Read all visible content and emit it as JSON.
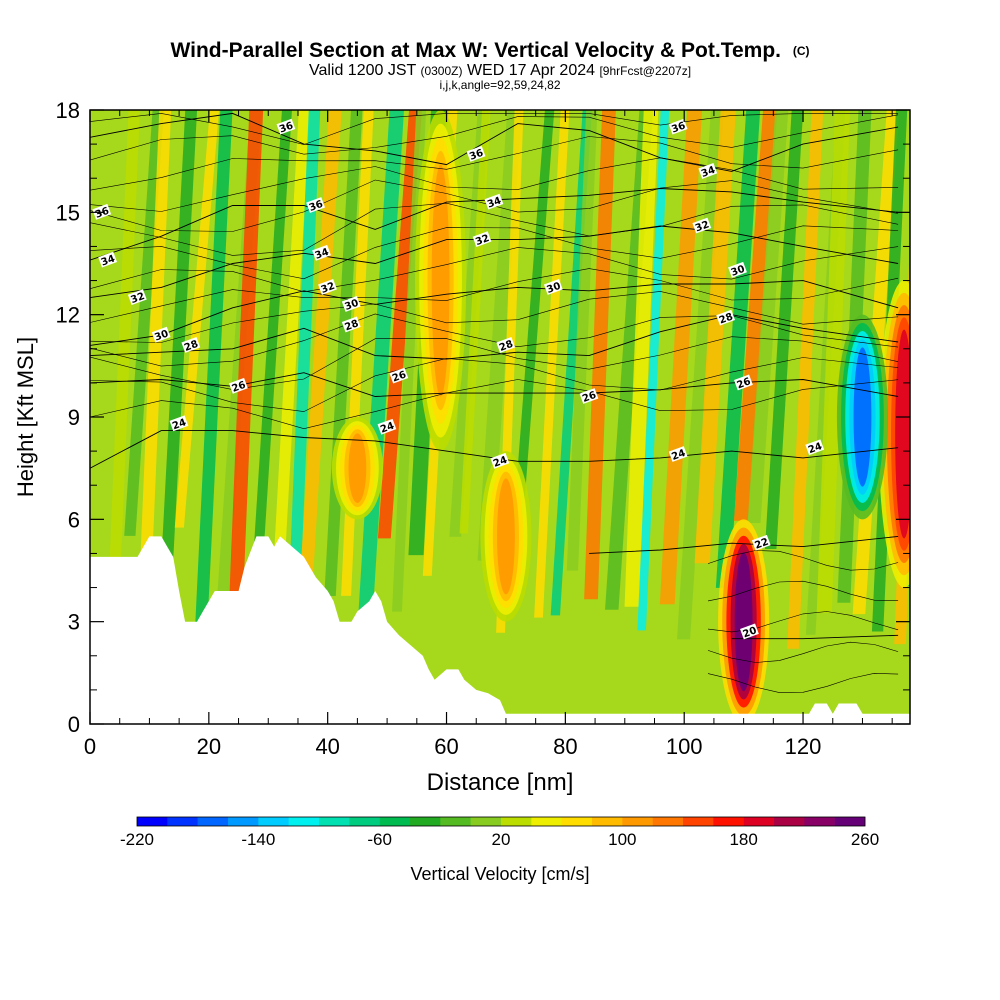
{
  "chart_data": {
    "type": "heatmap",
    "title": "Wind-Parallel Section at Max W: Vertical Velocity & Pot.Temp.",
    "title_unit": "(C)",
    "subtitle_main": "Valid 1200 JST",
    "subtitle_utc": "(0300Z)",
    "subtitle_date": "WED 17 Apr 2024",
    "subtitle_fcst": "[9hrFcst@2207z]",
    "indices": "i,j,k,angle=92,59,24,82",
    "xlabel": "Distance [nm]",
    "ylabel": "Height [Kft MSL]",
    "xlim": [
      0,
      138
    ],
    "ylim": [
      0,
      18
    ],
    "x_ticks": [
      "0",
      "20",
      "40",
      "60",
      "80",
      "100",
      "120"
    ],
    "y_ticks": [
      "0",
      "3",
      "6",
      "9",
      "12",
      "15",
      "18"
    ],
    "colorbar": {
      "label": "Vertical Velocity [cm/s]",
      "range": [
        -220,
        260
      ],
      "ticks": [
        "-220",
        "-140",
        "-60",
        "20",
        "100",
        "180",
        "260"
      ],
      "colors": [
        "#0000ff",
        "#0033ff",
        "#0066ff",
        "#0099ff",
        "#00ccff",
        "#00f0f0",
        "#00e0b0",
        "#00cc80",
        "#00bb50",
        "#22aa22",
        "#55bb22",
        "#88cc22",
        "#bbdd00",
        "#eeee00",
        "#ffdd00",
        "#ffbb00",
        "#ff9900",
        "#ff7700",
        "#ff4400",
        "#ff1100",
        "#dd0022",
        "#aa0044",
        "#880066",
        "#660077"
      ]
    },
    "terrain_kft": [
      [
        0,
        4.9
      ],
      [
        6,
        4.9
      ],
      [
        8,
        4.9
      ],
      [
        9,
        5.2
      ],
      [
        10,
        5.5
      ],
      [
        12,
        5.5
      ],
      [
        13,
        5.2
      ],
      [
        14,
        4.9
      ],
      [
        15,
        3.9
      ],
      [
        16,
        3.0
      ],
      [
        18,
        3.0
      ],
      [
        19,
        3.3
      ],
      [
        20,
        3.6
      ],
      [
        21,
        3.9
      ],
      [
        25,
        3.9
      ],
      [
        26,
        4.6
      ],
      [
        28,
        5.5
      ],
      [
        30,
        5.5
      ],
      [
        31,
        5.2
      ],
      [
        32,
        5.5
      ],
      [
        34,
        5.2
      ],
      [
        36,
        4.9
      ],
      [
        38,
        4.3
      ],
      [
        40,
        3.9
      ],
      [
        41,
        3.6
      ],
      [
        42,
        3.0
      ],
      [
        44,
        3.0
      ],
      [
        45,
        3.3
      ],
      [
        47,
        3.6
      ],
      [
        48,
        3.9
      ],
      [
        49,
        3.6
      ],
      [
        50,
        3.0
      ],
      [
        52,
        2.6
      ],
      [
        54,
        2.3
      ],
      [
        56,
        2.0
      ],
      [
        57,
        1.6
      ],
      [
        58,
        1.3
      ],
      [
        60,
        1.6
      ],
      [
        62,
        1.6
      ],
      [
        63,
        1.3
      ],
      [
        65,
        1.0
      ],
      [
        67,
        0.9
      ],
      [
        69,
        0.7
      ],
      [
        70,
        0.3
      ],
      [
        72,
        0.3
      ],
      [
        75,
        0.3
      ],
      [
        80,
        0.3
      ],
      [
        90,
        0.3
      ],
      [
        100,
        0.3
      ],
      [
        110,
        0.3
      ],
      [
        119,
        0.3
      ],
      [
        121,
        0.3
      ],
      [
        122,
        0.6
      ],
      [
        124,
        0.6
      ],
      [
        125,
        0.3
      ],
      [
        126,
        0.6
      ],
      [
        129,
        0.6
      ],
      [
        130,
        0.3
      ],
      [
        138,
        0.3
      ]
    ],
    "updrafts": [
      {
        "x": 110,
        "z0": 0,
        "z1": 6,
        "w": 260
      },
      {
        "x": 137,
        "z0": 4,
        "z1": 13,
        "w": 190
      },
      {
        "x": 130,
        "z0": 6,
        "z1": 12,
        "w": -180
      },
      {
        "x": 59,
        "z0": 8,
        "z1": 18,
        "w": 110
      },
      {
        "x": 45,
        "z0": 6,
        "z1": 9,
        "w": 100
      },
      {
        "x": 70,
        "z0": 3,
        "z1": 8,
        "w": 100
      }
    ],
    "contours": [
      {
        "level": "36",
        "y": [
          17.2,
          17.6,
          17.9,
          17.0,
          16.8,
          16.4,
          17.6,
          17.4,
          16.6,
          16.2,
          17.0,
          17.5
        ]
      },
      {
        "level": "34",
        "y": [
          13.6,
          14.3,
          15.2,
          15.2,
          14.5,
          15.3,
          15.4,
          15.5,
          15.7,
          15.6,
          15.3,
          15.0
        ]
      },
      {
        "level": "32",
        "y": [
          12.5,
          12.8,
          13.5,
          13.8,
          13.5,
          14.2,
          14.2,
          14.3,
          14.6,
          14.4,
          14.0,
          13.5
        ]
      },
      {
        "level": "30",
        "y": [
          11.1,
          11.4,
          12.2,
          12.7,
          12.3,
          12.6,
          12.8,
          12.7,
          12.9,
          12.9,
          13.0,
          12.2
        ]
      },
      {
        "level": "28",
        "y": [
          10.8,
          10.9,
          11.0,
          11.6,
          10.8,
          10.7,
          10.9,
          10.8,
          11.5,
          12.0,
          11.6,
          11.2
        ]
      },
      {
        "level": "26",
        "y": [
          10.0,
          10.1,
          9.9,
          10.3,
          9.6,
          9.7,
          9.7,
          9.7,
          9.8,
          10.0,
          10.1,
          9.6
        ]
      },
      {
        "level": "24",
        "y": [
          7.5,
          8.6,
          8.6,
          8.4,
          8.3,
          8.0,
          7.7,
          7.7,
          7.8,
          8.0,
          7.8,
          8.1
        ]
      },
      {
        "level": "22",
        "y": [
          null,
          null,
          null,
          null,
          null,
          null,
          null,
          5.0,
          5.1,
          5.3,
          5.2,
          5.5
        ]
      },
      {
        "level": "20",
        "y": [
          null,
          null,
          null,
          null,
          null,
          null,
          null,
          null,
          null,
          2.5,
          2.5,
          2.6
        ]
      }
    ],
    "contour_x": [
      0,
      12,
      24,
      36,
      48,
      60,
      72,
      84,
      96,
      108,
      120,
      136
    ],
    "contour_labels": [
      {
        "level": "36",
        "x": 2,
        "y": 15.0
      },
      {
        "level": "34",
        "x": 3,
        "y": 13.6
      },
      {
        "level": "32",
        "x": 8,
        "y": 12.5
      },
      {
        "level": "30",
        "x": 12,
        "y": 11.4
      },
      {
        "level": "28",
        "x": 17,
        "y": 11.1
      },
      {
        "level": "26",
        "x": 25,
        "y": 9.9
      },
      {
        "level": "24",
        "x": 15,
        "y": 8.8
      },
      {
        "level": "36",
        "x": 33,
        "y": 17.5
      },
      {
        "level": "36",
        "x": 38,
        "y": 15.2
      },
      {
        "level": "34",
        "x": 39,
        "y": 13.8
      },
      {
        "level": "32",
        "x": 40,
        "y": 12.8
      },
      {
        "level": "30",
        "x": 44,
        "y": 12.3
      },
      {
        "level": "28",
        "x": 44,
        "y": 11.7
      },
      {
        "level": "26",
        "x": 52,
        "y": 10.2
      },
      {
        "level": "24",
        "x": 50,
        "y": 8.7
      },
      {
        "level": "36",
        "x": 65,
        "y": 16.7
      },
      {
        "level": "34",
        "x": 68,
        "y": 15.3
      },
      {
        "level": "32",
        "x": 66,
        "y": 14.2
      },
      {
        "level": "28",
        "x": 70,
        "y": 11.1
      },
      {
        "level": "24",
        "x": 69,
        "y": 7.7
      },
      {
        "level": "30",
        "x": 78,
        "y": 12.8
      },
      {
        "level": "26",
        "x": 84,
        "y": 9.6
      },
      {
        "level": "36",
        "x": 99,
        "y": 17.5
      },
      {
        "level": "34",
        "x": 104,
        "y": 16.2
      },
      {
        "level": "32",
        "x": 103,
        "y": 14.6
      },
      {
        "level": "30",
        "x": 109,
        "y": 13.3
      },
      {
        "level": "28",
        "x": 107,
        "y": 11.9
      },
      {
        "level": "26",
        "x": 110,
        "y": 10.0
      },
      {
        "level": "24",
        "x": 99,
        "y": 7.9
      },
      {
        "level": "24",
        "x": 122,
        "y": 8.1
      },
      {
        "level": "22",
        "x": 113,
        "y": 5.3
      },
      {
        "level": "20",
        "x": 111,
        "y": 2.7
      }
    ],
    "grid": false
  }
}
